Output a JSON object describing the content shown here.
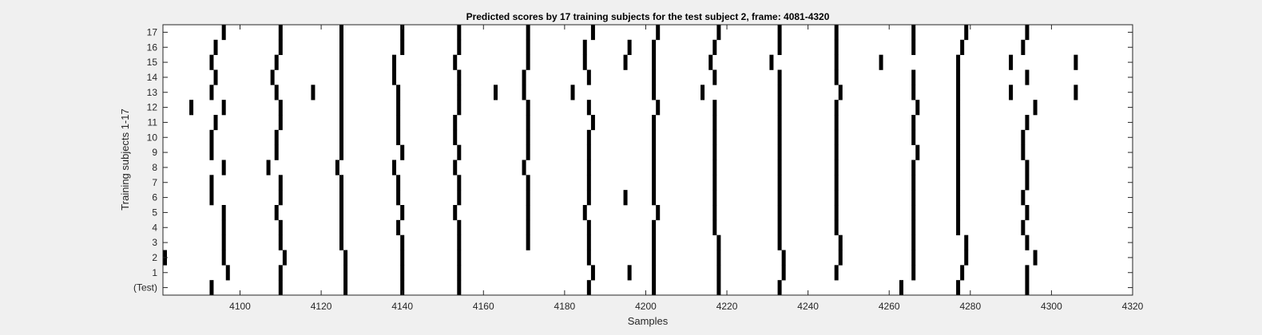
{
  "chart_data": {
    "type": "scatter",
    "title": "Predicted scores by 17 training subjects for the test subject 2, frame: 4081-4320",
    "xlabel": "Samples",
    "ylabel": "Training subjects 1-17",
    "xlim": [
      4081,
      4320
    ],
    "xticks": [
      4100,
      4120,
      4140,
      4160,
      4180,
      4200,
      4220,
      4240,
      4260,
      4280,
      4300,
      4320
    ],
    "yticklabels": [
      "(Test)",
      "1",
      "2",
      "3",
      "4",
      "5",
      "6",
      "7",
      "8",
      "9",
      "10",
      "11",
      "12",
      "13",
      "14",
      "15",
      "16",
      "17"
    ],
    "grid": false,
    "legend": "none",
    "mark_color": "#000000",
    "background_color": "#ffffff",
    "series": [
      {
        "row": "(Test)",
        "x": [
          4093,
          4110,
          4126,
          4140,
          4154,
          4186,
          4202,
          4218,
          4233,
          4263,
          4277,
          4294
        ]
      },
      {
        "row": "1",
        "x": [
          4097,
          4110,
          4126,
          4140,
          4154,
          4187,
          4196,
          4202,
          4218,
          4234,
          4247,
          4266,
          4278,
          4294
        ]
      },
      {
        "row": "2",
        "x": [
          4081,
          4096,
          4111,
          4126,
          4140,
          4154,
          4186,
          4202,
          4218,
          4234,
          4248,
          4266,
          4279,
          4296
        ]
      },
      {
        "row": "3",
        "x": [
          4096,
          4110,
          4125,
          4140,
          4154,
          4171,
          4186,
          4202,
          4218,
          4233,
          4248,
          4266,
          4279,
          4294
        ]
      },
      {
        "row": "4",
        "x": [
          4096,
          4110,
          4125,
          4139,
          4154,
          4171,
          4186,
          4202,
          4217,
          4233,
          4247,
          4266,
          4277,
          4293
        ]
      },
      {
        "row": "5",
        "x": [
          4096,
          4109,
          4125,
          4140,
          4153,
          4171,
          4185,
          4203,
          4217,
          4233,
          4247,
          4266,
          4277,
          4294
        ]
      },
      {
        "row": "6",
        "x": [
          4093,
          4110,
          4125,
          4139,
          4154,
          4171,
          4186,
          4195,
          4202,
          4217,
          4233,
          4247,
          4266,
          4277,
          4293
        ]
      },
      {
        "row": "7",
        "x": [
          4093,
          4110,
          4125,
          4139,
          4154,
          4171,
          4186,
          4202,
          4217,
          4233,
          4247,
          4266,
          4277,
          4294
        ]
      },
      {
        "row": "8",
        "x": [
          4096,
          4107,
          4124,
          4138,
          4153,
          4170,
          4186,
          4202,
          4217,
          4233,
          4247,
          4266,
          4277,
          4294
        ]
      },
      {
        "row": "9",
        "x": [
          4093,
          4109,
          4125,
          4140,
          4154,
          4171,
          4186,
          4202,
          4217,
          4233,
          4247,
          4267,
          4277,
          4293
        ]
      },
      {
        "row": "10",
        "x": [
          4093,
          4109,
          4125,
          4139,
          4153,
          4171,
          4186,
          4202,
          4217,
          4233,
          4247,
          4266,
          4277,
          4293
        ]
      },
      {
        "row": "11",
        "x": [
          4094,
          4110,
          4125,
          4139,
          4153,
          4171,
          4187,
          4202,
          4217,
          4233,
          4247,
          4266,
          4277,
          4294
        ]
      },
      {
        "row": "12",
        "x": [
          4088,
          4096,
          4110,
          4125,
          4139,
          4154,
          4171,
          4186,
          4203,
          4217,
          4233,
          4247,
          4267,
          4277,
          4296
        ]
      },
      {
        "row": "13",
        "x": [
          4093,
          4109,
          4118,
          4125,
          4139,
          4154,
          4163,
          4170,
          4182,
          4202,
          4214,
          4233,
          4248,
          4266,
          4277,
          4290,
          4306
        ]
      },
      {
        "row": "14",
        "x": [
          4094,
          4108,
          4125,
          4138,
          4154,
          4170,
          4186,
          4202,
          4217,
          4233,
          4247,
          4266,
          4277,
          4294
        ]
      },
      {
        "row": "15",
        "x": [
          4093,
          4109,
          4125,
          4138,
          4153,
          4171,
          4185,
          4195,
          4202,
          4216,
          4231,
          4247,
          4258,
          4277,
          4290,
          4306
        ]
      },
      {
        "row": "16",
        "x": [
          4094,
          4110,
          4125,
          4140,
          4154,
          4171,
          4185,
          4196,
          4202,
          4217,
          4233,
          4247,
          4266,
          4278,
          4293
        ]
      },
      {
        "row": "17",
        "x": [
          4096,
          4110,
          4125,
          4140,
          4154,
          4171,
          4187,
          4203,
          4218,
          4233,
          4247,
          4266,
          4279,
          4294
        ]
      }
    ]
  }
}
